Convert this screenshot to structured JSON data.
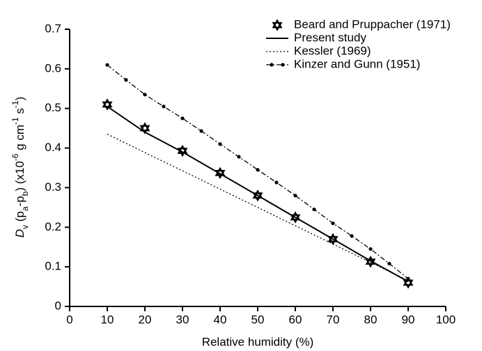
{
  "chart_data": {
    "type": "line",
    "xlabel": "Relative humidity (%)",
    "ylabel_parts": [
      "D",
      "v",
      " (p",
      "a",
      "-p",
      "b",
      ") (x10",
      "-6",
      " g cm",
      "-1",
      " s",
      "-1",
      ")"
    ],
    "xlim": [
      0,
      100
    ],
    "xticks": [
      0,
      10,
      20,
      30,
      40,
      50,
      60,
      70,
      80,
      90,
      100
    ],
    "ylim": [
      0,
      0.7
    ],
    "yticks": [
      0,
      0.1,
      0.2,
      0.3,
      0.4,
      0.5,
      0.6,
      0.7
    ],
    "grid": false,
    "legend": "upper right",
    "series": [
      {
        "name": "Beard and Pruppacher (1971)",
        "color": "#000000",
        "style": "star",
        "x": [
          10,
          20,
          30,
          40,
          50,
          60,
          70,
          80,
          90
        ],
        "values": [
          0.51,
          0.45,
          0.393,
          0.337,
          0.28,
          0.225,
          0.17,
          0.113,
          0.06
        ]
      },
      {
        "name": "Present study",
        "color": "#000000",
        "style": "solid",
        "x": [
          10,
          20,
          30,
          40,
          50,
          60,
          70,
          80,
          90
        ],
        "values": [
          0.505,
          0.44,
          0.39,
          0.335,
          0.28,
          0.225,
          0.17,
          0.115,
          0.063
        ]
      },
      {
        "name": "Kessler (1969)",
        "color": "#000000",
        "style": "dotted",
        "x": [
          10,
          90
        ],
        "values": [
          0.435,
          0.065
        ]
      },
      {
        "name": "Kinzer and Gunn (1951)",
        "color": "#000000",
        "style": "dashdot",
        "x": [
          10,
          15,
          20,
          25,
          30,
          35,
          40,
          45,
          50,
          55,
          60,
          65,
          70,
          75,
          80,
          85,
          90
        ],
        "values": [
          0.61,
          0.572,
          0.535,
          0.505,
          0.475,
          0.443,
          0.41,
          0.378,
          0.345,
          0.313,
          0.28,
          0.245,
          0.21,
          0.178,
          0.145,
          0.108,
          0.07
        ]
      }
    ]
  }
}
